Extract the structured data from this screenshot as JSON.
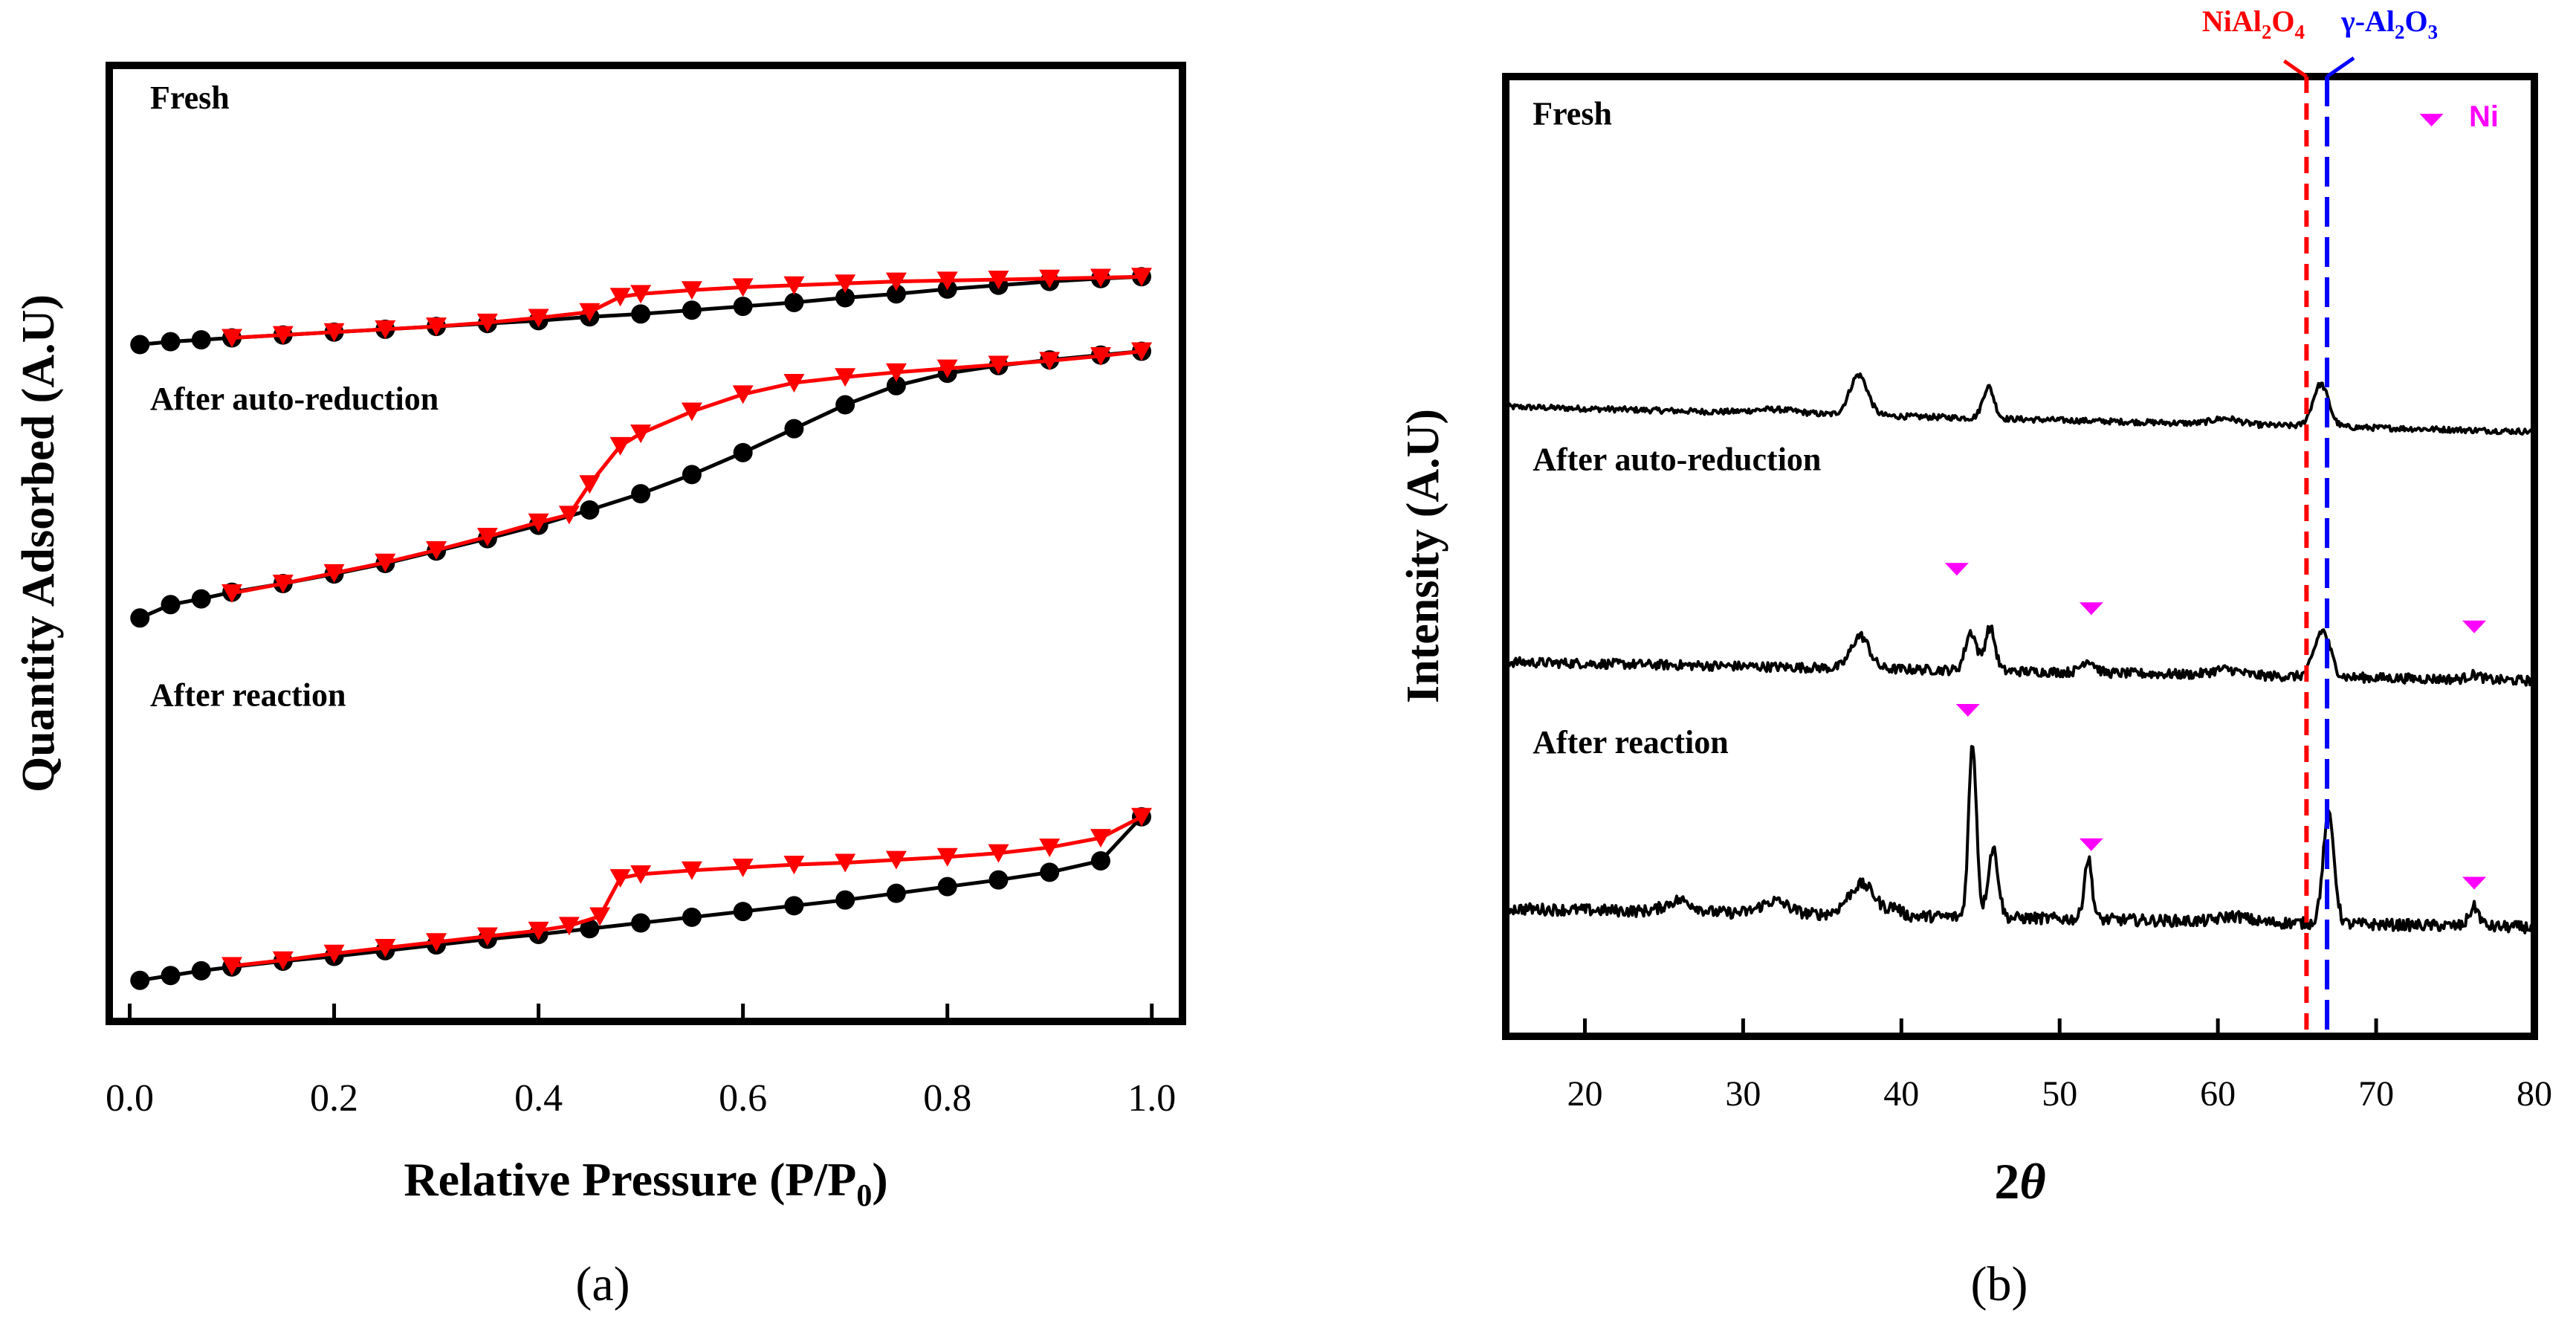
{
  "colors": {
    "axis": "#000000",
    "adsorption": "#000000",
    "desorption": "#ff0000",
    "ni_marker": "#ff00ff",
    "nial2o4_line": "#ff0000",
    "gamma_line": "#0000ff"
  },
  "chart_data": [
    {
      "type": "line",
      "panel_label": "(a)",
      "xlabel_main": "Relative Pressure (P/P",
      "xlabel_sub": "0",
      "xlabel_end": ")",
      "ylabel": "Quantity Adsorbed (A.U)",
      "xlim": [
        -0.02,
        1.03
      ],
      "ylim": [
        0,
        10
      ],
      "xticks": [
        0.0,
        0.2,
        0.4,
        0.6,
        0.8,
        1.0
      ],
      "xtick_labels": [
        "0.0",
        "0.2",
        "0.4",
        "0.6",
        "0.8",
        "1.0"
      ],
      "series": [
        {
          "name": "Fresh",
          "adsorption": {
            "x": [
              0.01,
              0.04,
              0.07,
              0.1,
              0.15,
              0.2,
              0.25,
              0.3,
              0.35,
              0.4,
              0.45,
              0.5,
              0.55,
              0.6,
              0.65,
              0.7,
              0.75,
              0.8,
              0.85,
              0.9,
              0.95,
              0.99
            ],
            "y": [
              7.08,
              7.11,
              7.13,
              7.15,
              7.18,
              7.21,
              7.24,
              7.27,
              7.3,
              7.33,
              7.37,
              7.4,
              7.44,
              7.48,
              7.52,
              7.57,
              7.61,
              7.66,
              7.7,
              7.74,
              7.77,
              7.79
            ]
          },
          "desorption": {
            "x": [
              0.99,
              0.95,
              0.9,
              0.85,
              0.8,
              0.75,
              0.7,
              0.65,
              0.6,
              0.55,
              0.5,
              0.48,
              0.45,
              0.4,
              0.35,
              0.3,
              0.25,
              0.2,
              0.15,
              0.1
            ],
            "y": [
              7.79,
              7.78,
              7.77,
              7.76,
              7.75,
              7.74,
              7.72,
              7.7,
              7.68,
              7.65,
              7.61,
              7.58,
              7.42,
              7.36,
              7.31,
              7.27,
              7.24,
              7.21,
              7.18,
              7.15
            ]
          }
        },
        {
          "name": "After auto-reduction",
          "adsorption": {
            "x": [
              0.01,
              0.04,
              0.07,
              0.1,
              0.15,
              0.2,
              0.25,
              0.3,
              0.35,
              0.4,
              0.45,
              0.5,
              0.55,
              0.6,
              0.65,
              0.7,
              0.75,
              0.8,
              0.85,
              0.9,
              0.95,
              0.99
            ],
            "y": [
              4.22,
              4.36,
              4.42,
              4.49,
              4.58,
              4.68,
              4.79,
              4.92,
              5.05,
              5.19,
              5.35,
              5.52,
              5.72,
              5.95,
              6.2,
              6.45,
              6.65,
              6.78,
              6.86,
              6.92,
              6.97,
              7.01
            ]
          },
          "desorption": {
            "x": [
              0.99,
              0.95,
              0.9,
              0.85,
              0.8,
              0.75,
              0.7,
              0.65,
              0.6,
              0.55,
              0.5,
              0.48,
              0.45,
              0.43,
              0.4,
              0.35,
              0.3,
              0.25,
              0.2,
              0.15,
              0.1
            ],
            "y": [
              7.01,
              6.96,
              6.91,
              6.87,
              6.83,
              6.79,
              6.74,
              6.68,
              6.56,
              6.38,
              6.15,
              6.02,
              5.62,
              5.3,
              5.22,
              5.07,
              4.93,
              4.8,
              4.69,
              4.58,
              4.48
            ]
          }
        },
        {
          "name": "After reaction",
          "adsorption": {
            "x": [
              0.01,
              0.04,
              0.07,
              0.1,
              0.15,
              0.2,
              0.25,
              0.3,
              0.35,
              0.4,
              0.45,
              0.5,
              0.55,
              0.6,
              0.65,
              0.7,
              0.75,
              0.8,
              0.85,
              0.9,
              0.95,
              0.99
            ],
            "y": [
              0.43,
              0.48,
              0.53,
              0.57,
              0.63,
              0.68,
              0.74,
              0.8,
              0.86,
              0.91,
              0.97,
              1.03,
              1.09,
              1.15,
              1.21,
              1.27,
              1.34,
              1.41,
              1.48,
              1.56,
              1.68,
              2.14
            ]
          },
          "desorption": {
            "x": [
              0.99,
              0.95,
              0.9,
              0.85,
              0.8,
              0.75,
              0.7,
              0.65,
              0.6,
              0.55,
              0.5,
              0.48,
              0.46,
              0.43,
              0.4,
              0.35,
              0.3,
              0.25,
              0.2,
              0.15,
              0.1
            ],
            "y": [
              2.14,
              1.92,
              1.82,
              1.76,
              1.72,
              1.69,
              1.66,
              1.64,
              1.61,
              1.58,
              1.54,
              1.5,
              1.1,
              1.0,
              0.95,
              0.89,
              0.83,
              0.77,
              0.71,
              0.64,
              0.58
            ]
          }
        }
      ],
      "annotations": [
        {
          "text": "Fresh",
          "x": 0.02,
          "y": 9.55
        },
        {
          "text": "After auto-reduction",
          "x": 0.02,
          "y": 6.4
        },
        {
          "text": "After reaction",
          "x": 0.02,
          "y": 3.3
        }
      ]
    },
    {
      "type": "line",
      "panel_label": "(b)",
      "xlabel_num": "2",
      "xlabel_theta": "θ",
      "ylabel": "Intensity (A.U)",
      "xlim": [
        15,
        80
      ],
      "ylim": [
        0,
        10
      ],
      "xticks": [
        20,
        30,
        40,
        50,
        60,
        70,
        80
      ],
      "xtick_labels": [
        "20",
        "30",
        "40",
        "50",
        "60",
        "70",
        "80"
      ],
      "series": [
        {
          "name": "Fresh",
          "baseline": 6.56,
          "slope": -0.004,
          "noise": 0.03,
          "peaks": [
            [
              37.3,
              0.42,
              0.8
            ],
            [
              45.5,
              0.33,
              0.5
            ],
            [
              66.5,
              0.44,
              0.7
            ],
            [
              60.5,
              0.06,
              1.2
            ],
            [
              32,
              0.04,
              2
            ]
          ]
        },
        {
          "name": "After auto-reduction",
          "baseline": 3.9,
          "slope": -0.003,
          "noise": 0.05,
          "peaks": [
            [
              37.4,
              0.34,
              0.8
            ],
            [
              44.4,
              0.4,
              0.5
            ],
            [
              45.6,
              0.45,
              0.45
            ],
            [
              51.8,
              0.13,
              0.6
            ],
            [
              66.6,
              0.48,
              0.7
            ],
            [
              76.2,
              0.05,
              0.6
            ],
            [
              60.5,
              0.06,
              1.2
            ]
          ]
        },
        {
          "name": "After reaction",
          "baseline": 1.33,
          "slope": -0.003,
          "noise": 0.06,
          "peaks": [
            [
              37.5,
              0.32,
              1.2
            ],
            [
              39.6,
              0.08,
              0.5
            ],
            [
              44.5,
              1.8,
              0.35
            ],
            [
              45.8,
              0.72,
              0.45
            ],
            [
              51.8,
              0.63,
              0.35
            ],
            [
              67,
              1.12,
              0.5
            ],
            [
              76.2,
              0.2,
              0.45
            ],
            [
              26,
              0.12,
              1.2
            ],
            [
              32,
              0.13,
              1.2
            ],
            [
              61,
              0.06,
              1.2
            ]
          ]
        }
      ],
      "ni_markers": [
        {
          "x": 73.5,
          "y": 9.55
        },
        {
          "x": 43.5,
          "y": 4.87
        },
        {
          "x": 52.0,
          "y": 4.46
        },
        {
          "x": 76.2,
          "y": 4.27
        },
        {
          "x": 44.2,
          "y": 3.4
        },
        {
          "x": 52.0,
          "y": 2.0
        },
        {
          "x": 76.2,
          "y": 1.6
        }
      ],
      "ref_lines": [
        {
          "label_main": "NiAl",
          "label_sub1": "2",
          "label_mid": "O",
          "label_sub2": "4",
          "x": 65.6
        },
        {
          "label_main": "γ-Al",
          "label_sub1": "2",
          "label_mid": "O",
          "label_sub2": "3",
          "x": 66.9
        }
      ],
      "legend_label": "Ni",
      "annotations": [
        {
          "text": "Fresh",
          "x": 16.7,
          "y": 9.5
        },
        {
          "text": "After auto-reduction",
          "x": 16.7,
          "y": 5.9
        },
        {
          "text": "After reaction",
          "x": 16.7,
          "y": 2.95
        }
      ]
    }
  ]
}
